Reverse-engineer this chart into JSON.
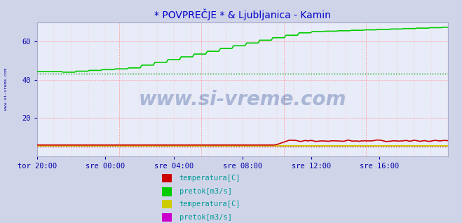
{
  "title": "* POVPREČJE * & Ljubljanica - Kamin",
  "title_color": "#0000cc",
  "bg_color": "#d0d4e8",
  "plot_bg_color": "#e8ecf8",
  "grid_color_h": "#ff9999",
  "grid_color_v": "#ff9999",
  "ylabel_color": "#0000aa",
  "tick_color": "#0000aa",
  "watermark": "www.si-vreme.com",
  "watermark_color": "#1a3a8a",
  "watermark_alpha": 0.3,
  "ylim": [
    0,
    70
  ],
  "yticks": [
    20,
    40,
    60
  ],
  "xlabel_color": "#0000aa",
  "x_labels": [
    "tor 20:00",
    "sre 00:00",
    "sre 04:00",
    "sre 08:00",
    "sre 12:00",
    "sre 16:00"
  ],
  "n_points": 252,
  "green_line_color": "#00cc00",
  "red_line_color": "#cc0000",
  "yellow_line_color": "#cccc00",
  "magenta_line_color": "#cc00cc",
  "blue_dotted_color": "#0000ff",
  "green_dotted_value": 43.0,
  "green_dotted_color": "#009900",
  "red_dotted_value": 5.5,
  "red_dotted_color": "#cc0000",
  "legend1_labels": [
    "temperatura[C]",
    "pretok[m3/s]"
  ],
  "legend1_colors": [
    "#cc0000",
    "#00cc00"
  ],
  "legend2_labels": [
    "temperatura[C]",
    "pretok[m3/s]"
  ],
  "legend2_colors": [
    "#cccc00",
    "#cc00cc"
  ],
  "legend_text_color": "#009999",
  "legend_fontsize": 7.5,
  "title_fontsize": 10,
  "tick_fontsize": 7.5,
  "font_family": "monospace"
}
